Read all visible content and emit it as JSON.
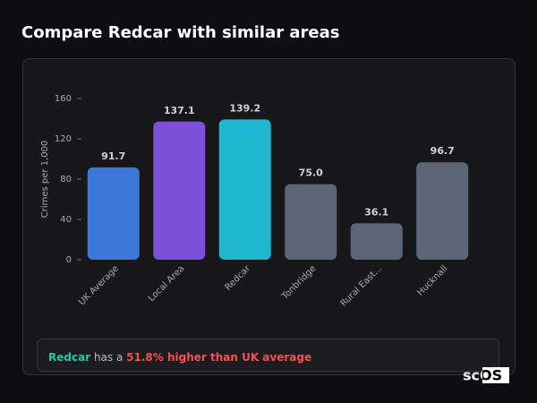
{
  "header": {
    "title": "Compare Redcar with similar areas"
  },
  "chart_data": {
    "type": "bar",
    "y_label": "Crimes per 1,000",
    "categories": [
      "UK Average",
      "Local Area",
      "Redcar",
      "Tonbridge",
      "Rural East...",
      "Hucknall"
    ],
    "values": [
      91.7,
      137.1,
      139.2,
      75.0,
      36.1,
      96.7
    ],
    "value_labels": [
      "91.7",
      "137.1",
      "139.2",
      "75.0",
      "36.1",
      "96.7"
    ],
    "colors": [
      "#3b78d8",
      "#7b4fd6",
      "#1fb6cf",
      "#5c6577",
      "#5c6577",
      "#5c6577"
    ],
    "ylim": [
      0,
      160
    ],
    "yticks": [
      0,
      40,
      80,
      120,
      160
    ],
    "grid": false
  },
  "summary": {
    "area": "Redcar",
    "text": "has a",
    "comparison": "51.8% higher than UK average"
  },
  "logo": "scOS"
}
